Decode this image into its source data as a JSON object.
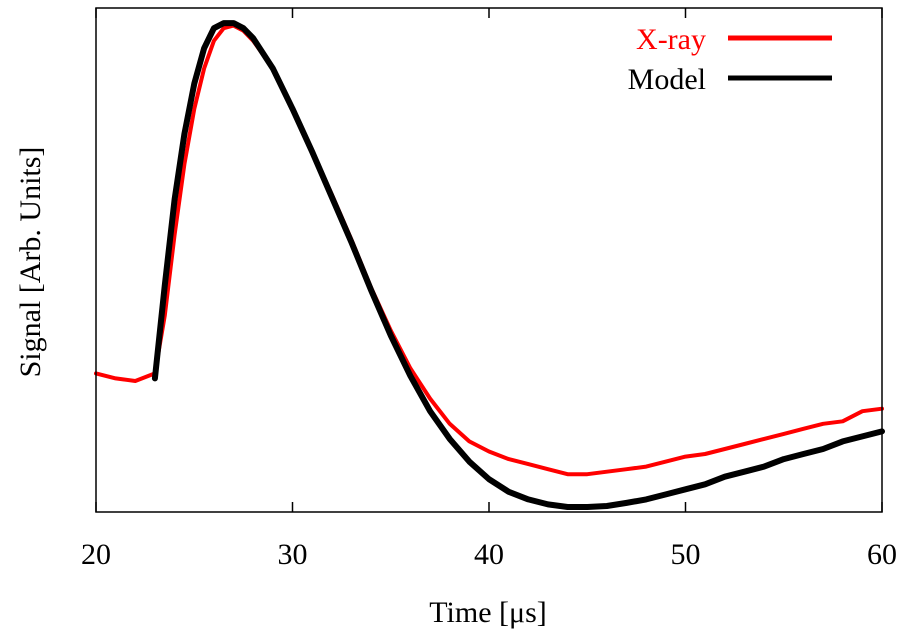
{
  "chart_data": {
    "type": "line",
    "xlabel": "Time [μs]",
    "ylabel": "Signal [Arb. Units]",
    "xlim": [
      20,
      60
    ],
    "ylim": [
      0,
      1
    ],
    "y_ticks_shown": false,
    "x_ticks": [
      20,
      30,
      40,
      50,
      60
    ],
    "x_tick_labels": [
      "20",
      "30",
      "40",
      "50",
      "60"
    ],
    "grid": false,
    "legend_position": "top-right",
    "series": [
      {
        "name": "X-ray",
        "color": "#ff0000",
        "x": [
          20,
          21,
          22,
          23,
          23.5,
          24,
          24.5,
          25,
          25.5,
          26,
          26.5,
          27,
          27.5,
          28,
          29,
          30,
          31,
          32,
          33,
          34,
          35,
          36,
          37,
          38,
          39,
          40,
          41,
          42,
          43,
          44,
          45,
          46,
          47,
          48,
          49,
          50,
          51,
          52,
          53,
          54,
          55,
          56,
          57,
          58,
          59,
          60
        ],
        "y": [
          0.275,
          0.265,
          0.26,
          0.275,
          0.39,
          0.55,
          0.69,
          0.8,
          0.88,
          0.935,
          0.96,
          0.965,
          0.955,
          0.935,
          0.88,
          0.8,
          0.715,
          0.63,
          0.54,
          0.445,
          0.36,
          0.285,
          0.225,
          0.175,
          0.14,
          0.12,
          0.105,
          0.095,
          0.085,
          0.075,
          0.075,
          0.08,
          0.085,
          0.09,
          0.1,
          0.11,
          0.115,
          0.125,
          0.135,
          0.145,
          0.155,
          0.165,
          0.175,
          0.18,
          0.2,
          0.205
        ]
      },
      {
        "name": "Model",
        "color": "#000000",
        "x": [
          23,
          23.5,
          24,
          24.5,
          25,
          25.5,
          26,
          26.5,
          27,
          27.5,
          28,
          29,
          30,
          31,
          32,
          33,
          34,
          35,
          36,
          37,
          38,
          39,
          40,
          41,
          42,
          43,
          44,
          45,
          46,
          47,
          48,
          49,
          50,
          51,
          52,
          53,
          54,
          55,
          56,
          57,
          58,
          59,
          60
        ],
        "y": [
          0.265,
          0.45,
          0.62,
          0.75,
          0.85,
          0.92,
          0.96,
          0.97,
          0.97,
          0.96,
          0.94,
          0.88,
          0.8,
          0.715,
          0.625,
          0.535,
          0.44,
          0.35,
          0.27,
          0.2,
          0.145,
          0.1,
          0.065,
          0.04,
          0.025,
          0.015,
          0.01,
          0.01,
          0.012,
          0.018,
          0.025,
          0.035,
          0.045,
          0.055,
          0.07,
          0.08,
          0.09,
          0.105,
          0.115,
          0.125,
          0.14,
          0.15,
          0.16
        ]
      }
    ]
  }
}
